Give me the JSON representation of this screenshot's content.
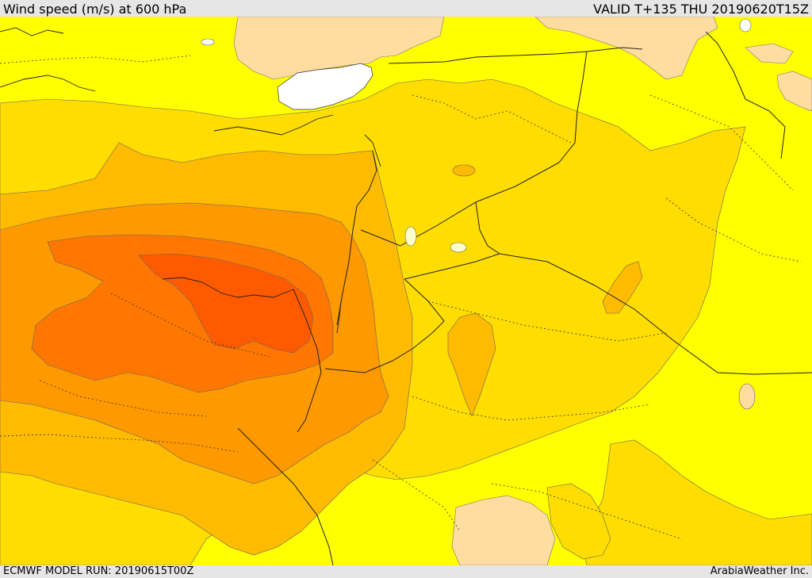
{
  "header": {
    "title": "Wind speed (m/s) at 600 hPa",
    "valid_time": "VALID T+135 THU  20190620T15Z"
  },
  "footer": {
    "model_run": "ECMWF MODEL RUN: 20190615T00Z",
    "credit": "ArabiaWeather Inc."
  },
  "colors": {
    "background": "#ffff00",
    "level_light": "#ffdda0",
    "level_1": "#ffdd00",
    "level_2": "#ffbb00",
    "level_3": "#ff9900",
    "level_4": "#ff7700",
    "level_5": "#ff5a00",
    "sea_white": "#ffffff"
  }
}
